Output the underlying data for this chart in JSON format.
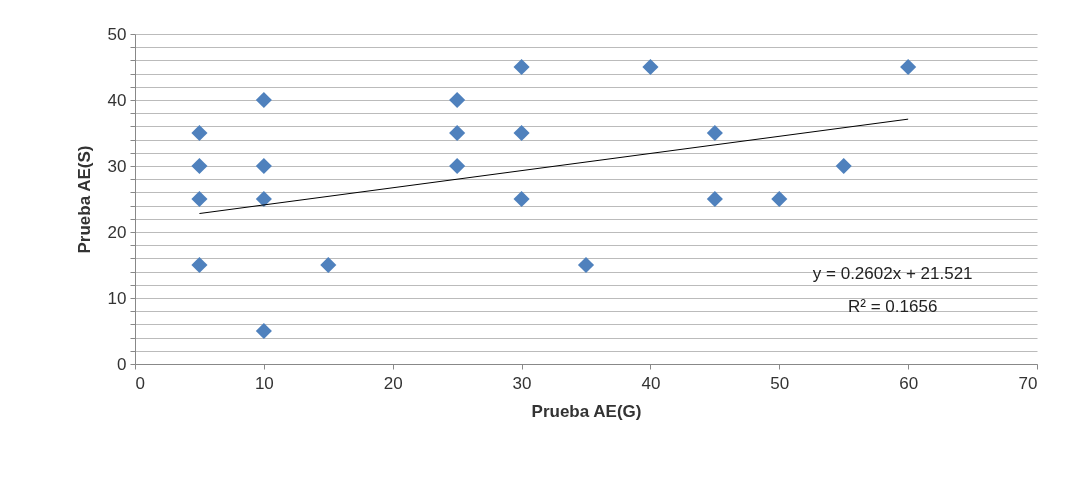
{
  "chart_data": {
    "type": "scatter",
    "xlabel": "Prueba AE(G)",
    "ylabel": "Prueba AE(S)",
    "xlim": [
      0,
      70
    ],
    "xticks": [
      0,
      10,
      20,
      30,
      40,
      50,
      60,
      70
    ],
    "ylim": [
      0,
      50
    ],
    "yticks": [
      0,
      {
        "value": 2,
        "label": null
      },
      {
        "value": 4,
        "label": null
      },
      {
        "value": 6,
        "label": null
      },
      {
        "value": 8,
        "label": null
      },
      10,
      {
        "value": 12,
        "label": null
      },
      {
        "value": 14,
        "label": null
      },
      {
        "value": 16,
        "label": null
      },
      {
        "value": 18,
        "label": null
      },
      20,
      {
        "value": 22,
        "label": null
      },
      {
        "value": 24,
        "label": null
      },
      {
        "value": 26,
        "label": null
      },
      {
        "value": 28,
        "label": null
      },
      30,
      {
        "value": 32,
        "label": null
      },
      {
        "value": 34,
        "label": null
      },
      {
        "value": 36,
        "label": null
      },
      {
        "value": 38,
        "label": null
      },
      40,
      {
        "value": 42,
        "label": null
      },
      {
        "value": 44,
        "label": null
      },
      {
        "value": 46,
        "label": null
      },
      {
        "value": 48,
        "label": null
      },
      50
    ],
    "grid": "y",
    "marker": "diamond",
    "series": [
      {
        "color": "#4f81bd",
        "x": [
          5,
          5,
          5,
          5,
          10,
          10,
          10,
          10,
          15,
          25,
          25,
          25,
          30,
          30,
          30,
          35,
          40,
          45,
          45,
          50,
          55,
          60
        ],
        "values": [
          35,
          30,
          25,
          15,
          40,
          30,
          25,
          5,
          15,
          40,
          35,
          30,
          45,
          35,
          25,
          15,
          45,
          35,
          25,
          25,
          30,
          45
        ]
      },
      {
        "type": "line",
        "marker": "none",
        "color": "#000000",
        "x": [
          5,
          60
        ],
        "values": [
          22.8,
          37.1
        ]
      }
    ],
    "annotations": [
      "y = 0.2602x + 21.521",
      "R² = 0.1656"
    ]
  }
}
